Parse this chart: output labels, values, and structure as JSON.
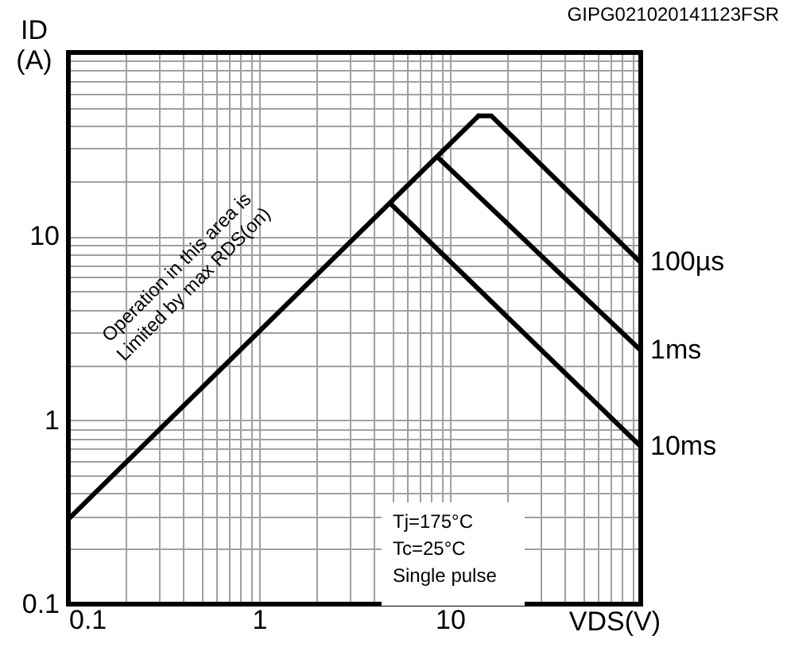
{
  "chart_data": {
    "type": "line",
    "xlabel": "VDS(V)",
    "ylabel": "ID\n(A)",
    "series": [
      {
        "color": "#000000",
        "x": [
          0.1,
          14.1
        ],
        "values": [
          0.29,
          45.2
        ]
      },
      {
        "name": "100µs",
        "color": "#000000",
        "x": [
          14.1,
          16.5,
          100
        ],
        "values": [
          45.2,
          45.2,
          7.2
        ]
      },
      {
        "name": "1ms",
        "color": "#000000",
        "x": [
          8.7,
          100
        ],
        "values": [
          26.7,
          2.4
        ]
      },
      {
        "name": "10ms",
        "color": "#000000",
        "x": [
          4.9,
          100
        ],
        "values": [
          15,
          0.72
        ]
      }
    ],
    "log": "xy",
    "xlim": [
      0.1,
      100
    ],
    "ylim": [
      0.1,
      100
    ],
    "xticks": [
      0.1,
      {
        "value": 0.2,
        "label": null
      },
      {
        "value": 0.3,
        "label": null
      },
      {
        "value": 0.4,
        "label": null
      },
      {
        "value": 0.5,
        "label": null
      },
      {
        "value": 0.6,
        "label": null
      },
      {
        "value": 0.7,
        "label": null
      },
      {
        "value": 0.8,
        "label": null
      },
      {
        "value": 0.9,
        "label": null
      },
      1,
      {
        "value": 2,
        "label": null
      },
      {
        "value": 3,
        "label": null
      },
      {
        "value": 4,
        "label": null
      },
      {
        "value": 5,
        "label": null
      },
      {
        "value": 6,
        "label": null
      },
      {
        "value": 7,
        "label": null
      },
      {
        "value": 8,
        "label": null
      },
      {
        "value": 9,
        "label": null
      },
      10,
      {
        "value": 20,
        "label": null
      },
      {
        "value": 30,
        "label": null
      },
      {
        "value": 40,
        "label": null
      },
      {
        "value": 50,
        "label": null
      },
      {
        "value": 60,
        "label": null
      },
      {
        "value": 70,
        "label": null
      },
      {
        "value": 80,
        "label": null
      },
      {
        "value": 90,
        "label": null
      },
      {
        "value": 100,
        "label": null
      }
    ],
    "yticks": [
      0.1,
      {
        "value": 0.2,
        "label": null
      },
      {
        "value": 0.3,
        "label": null
      },
      {
        "value": 0.4,
        "label": null
      },
      {
        "value": 0.5,
        "label": null
      },
      {
        "value": 0.6,
        "label": null
      },
      {
        "value": 0.7,
        "label": null
      },
      {
        "value": 0.8,
        "label": null
      },
      {
        "value": 0.9,
        "label": null
      },
      1,
      {
        "value": 2,
        "label": null
      },
      {
        "value": 3,
        "label": null
      },
      {
        "value": 4,
        "label": null
      },
      {
        "value": 5,
        "label": null
      },
      {
        "value": 6,
        "label": null
      },
      {
        "value": 7,
        "label": null
      },
      {
        "value": 8,
        "label": null
      },
      {
        "value": 9,
        "label": null
      },
      10,
      {
        "value": 20,
        "label": null
      },
      {
        "value": 30,
        "label": null
      },
      {
        "value": 40,
        "label": null
      },
      {
        "value": 50,
        "label": null
      },
      {
        "value": 60,
        "label": null
      },
      {
        "value": 70,
        "label": null
      },
      {
        "value": 80,
        "label": null
      },
      {
        "value": 90,
        "label": null
      },
      {
        "value": 100,
        "label": null
      }
    ],
    "grid": true,
    "marker": "none",
    "line_style": "solid",
    "annotations": [
      "Operation in this area is\nLimited by max RDS(on)",
      "Tj=175°C\nTc=25°C\nSingle pulse",
      "GIPG021020141123FSR"
    ]
  }
}
